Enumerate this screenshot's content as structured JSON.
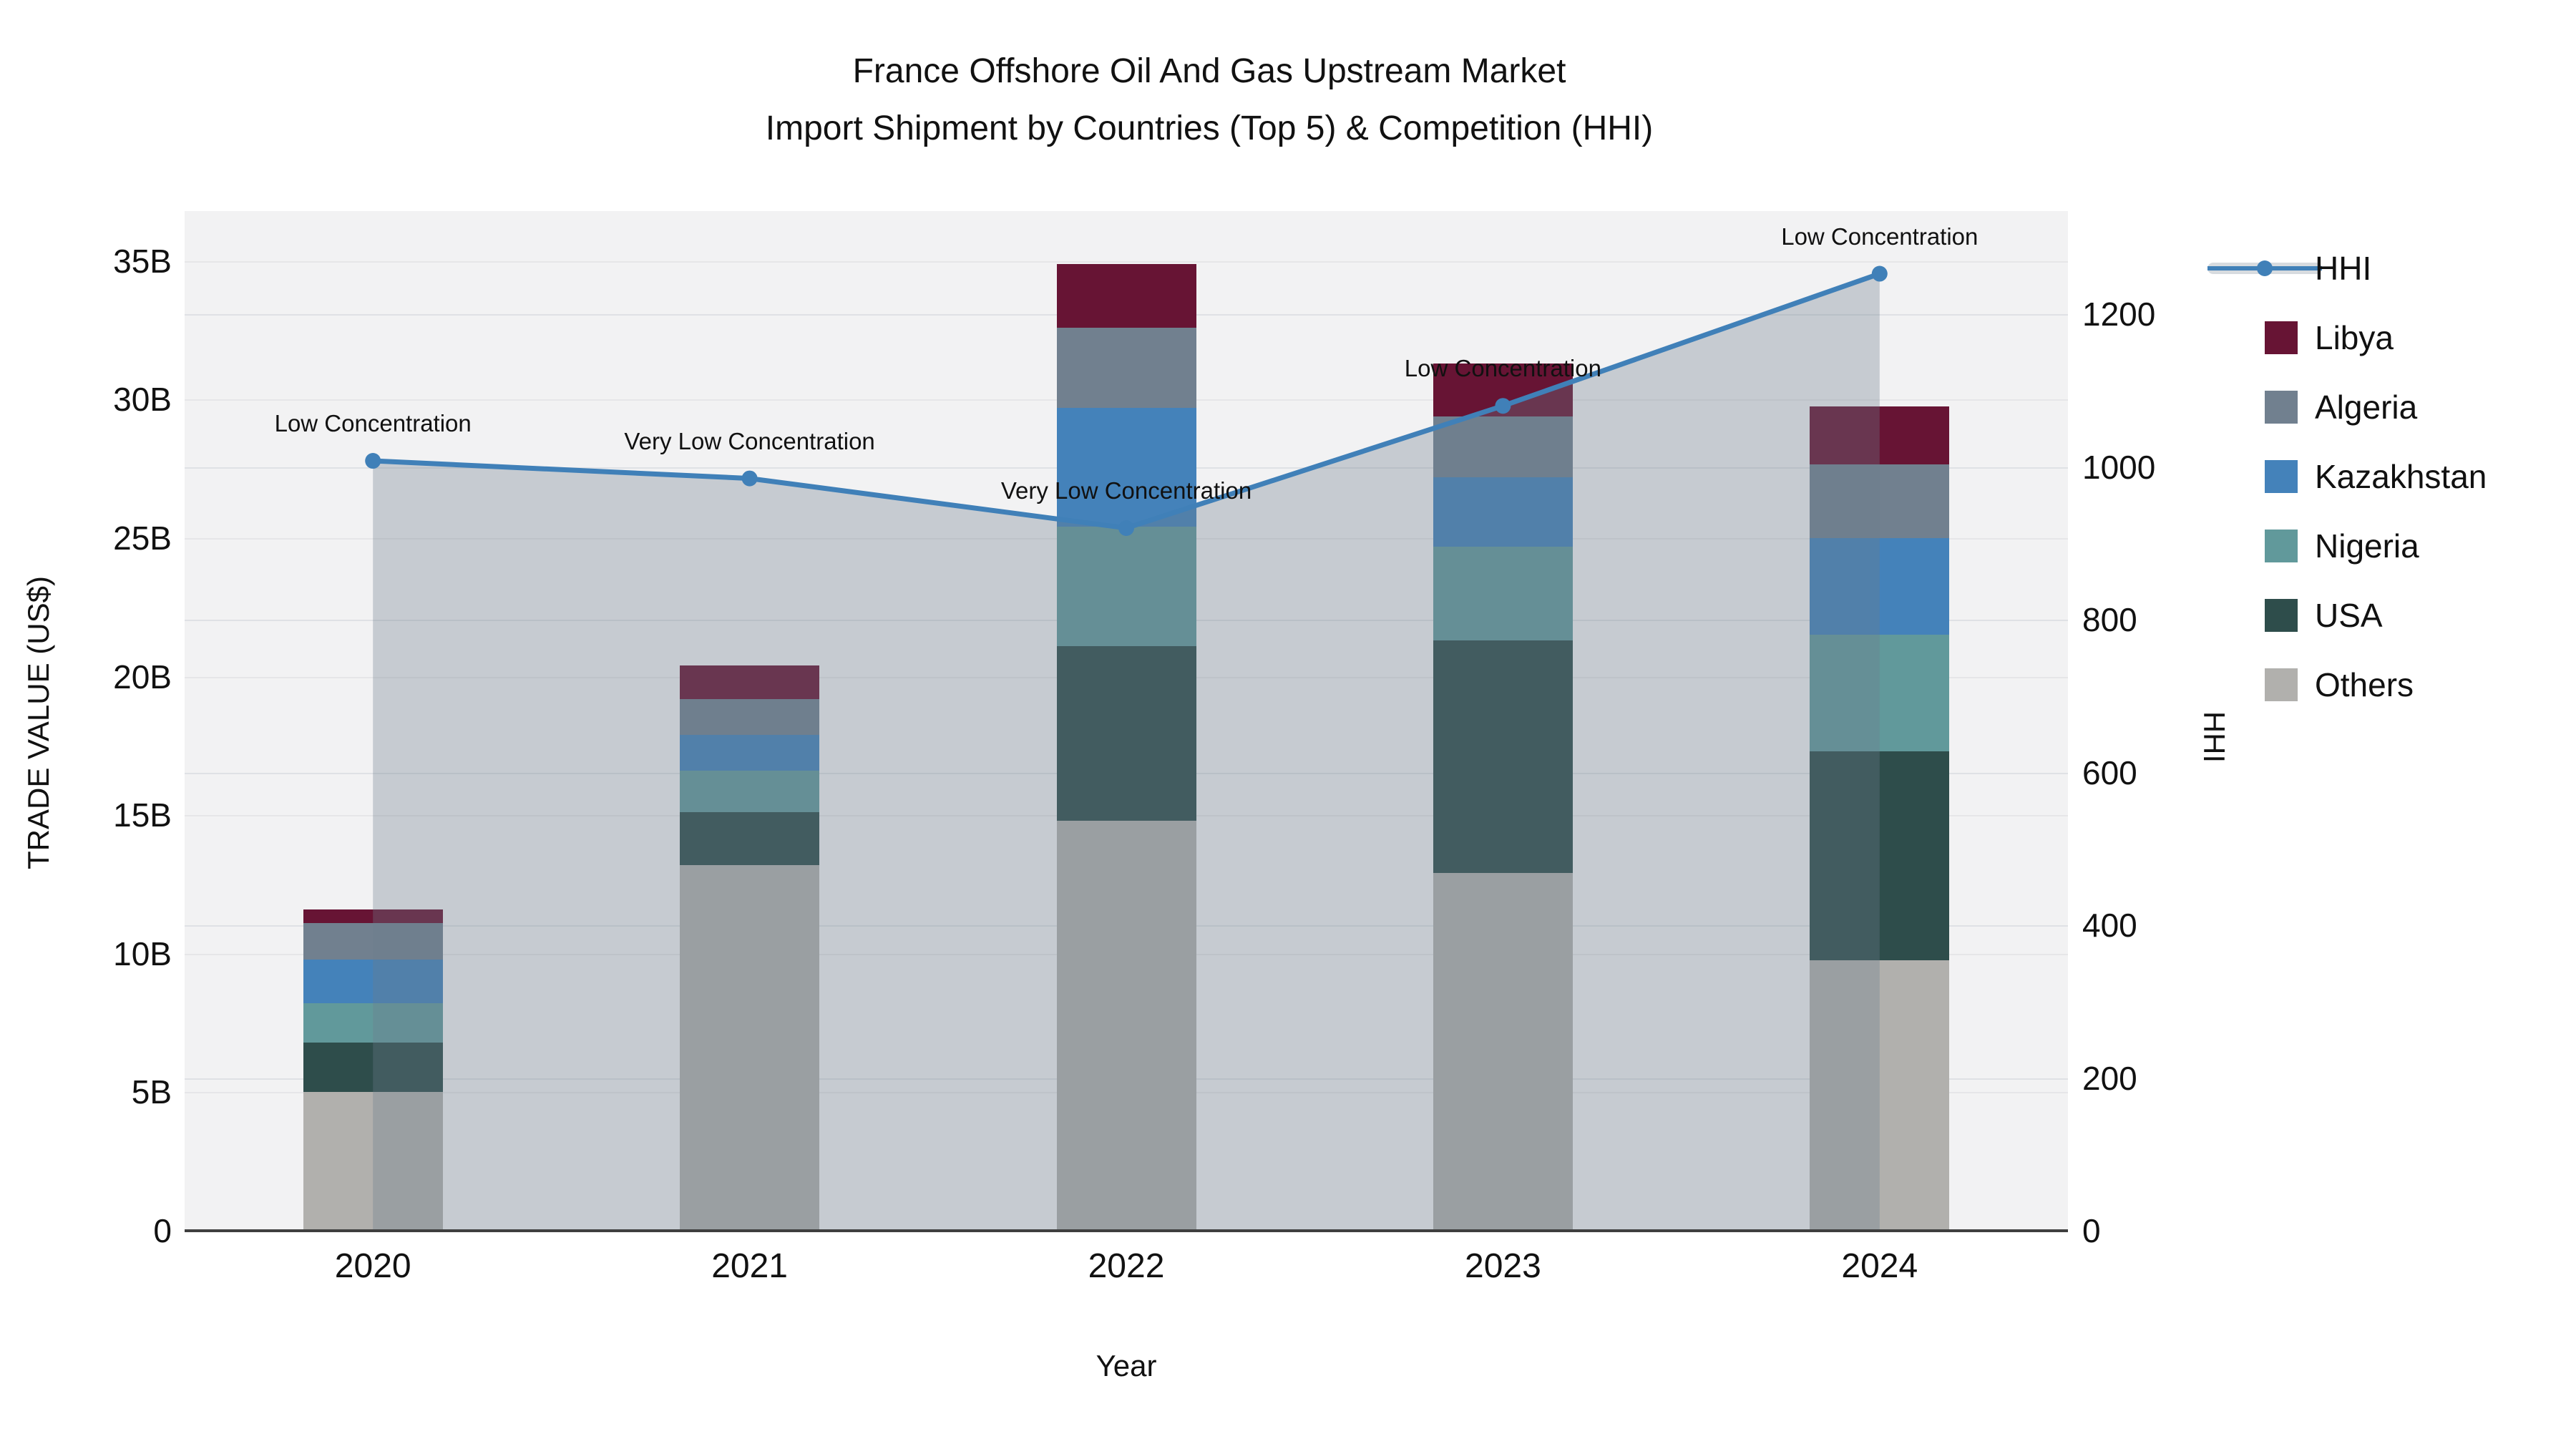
{
  "title": {
    "line1": "France Offshore Oil And Gas Upstream Market",
    "line2": "Import Shipment by Countries (Top 5) & Competition (HHI)"
  },
  "chart_data": {
    "type": "bar",
    "stacked": true,
    "title": "France Offshore Oil And Gas Upstream Market Import Shipment by Countries (Top 5) & Competition (HHI)",
    "categories": [
      "2020",
      "2021",
      "2022",
      "2023",
      "2024"
    ],
    "unit": "billion US$",
    "series": [
      {
        "name": "Others",
        "values": [
          5.0,
          13.2,
          14.8,
          12.9,
          9.75
        ]
      },
      {
        "name": "USA",
        "values": [
          1.8,
          1.9,
          6.3,
          8.4,
          7.55
        ]
      },
      {
        "name": "Nigeria",
        "values": [
          1.4,
          1.5,
          4.3,
          3.4,
          4.2
        ]
      },
      {
        "name": "Kazakhstan",
        "values": [
          1.6,
          1.3,
          4.3,
          2.5,
          3.5
        ]
      },
      {
        "name": "Algeria",
        "values": [
          1.3,
          1.3,
          2.9,
          2.2,
          2.65
        ]
      },
      {
        "name": "Libya",
        "values": [
          0.5,
          1.2,
          2.3,
          1.9,
          2.1
        ]
      }
    ],
    "totals": [
      11.6,
      20.4,
      34.9,
      31.3,
      29.75
    ],
    "line_series": {
      "name": "HHI",
      "axis": "right",
      "area": true,
      "values": [
        1008,
        985,
        920,
        1080,
        1253
      ]
    },
    "annotations": [
      {
        "category": "2020",
        "text": "Low Concentration"
      },
      {
        "category": "2021",
        "text": "Very Low Concentration"
      },
      {
        "category": "2022",
        "text": "Very Low Concentration"
      },
      {
        "category": "2023",
        "text": "Low Concentration"
      },
      {
        "category": "2024",
        "text": "Low Concentration"
      }
    ],
    "xlabel": "Year",
    "ylabel_left": "TRADE VALUE (US$)",
    "ylabel_right": "HHI",
    "ylim_left": [
      0,
      36.8
    ],
    "ylim_right": [
      0,
      1335
    ],
    "grid": true,
    "legend_position": "right"
  },
  "axes": {
    "y_left": {
      "title": "TRADE VALUE (US$)",
      "ticks": [
        "0",
        "5B",
        "10B",
        "15B",
        "20B",
        "25B",
        "30B",
        "35B"
      ],
      "tick_values": [
        0,
        5,
        10,
        15,
        20,
        25,
        30,
        35
      ]
    },
    "y_right": {
      "title": "HHI",
      "ticks": [
        "0",
        "200",
        "400",
        "600",
        "800",
        "1000",
        "1200"
      ],
      "tick_values": [
        0,
        200,
        400,
        600,
        800,
        1000,
        1200
      ]
    },
    "x": {
      "title": "Year",
      "categories": [
        "2020",
        "2021",
        "2022",
        "2023",
        "2024"
      ]
    }
  },
  "legend": {
    "items": [
      {
        "label": "HHI",
        "type": "line"
      },
      {
        "label": "Libya",
        "type": "square",
        "color": "#671434"
      },
      {
        "label": "Algeria",
        "type": "square",
        "color": "#71808F"
      },
      {
        "label": "Kazakhstan",
        "type": "square",
        "color": "#4482BA"
      },
      {
        "label": "Nigeria",
        "type": "square",
        "color": "#61999B"
      },
      {
        "label": "USA",
        "type": "square",
        "color": "#2E4D4B"
      },
      {
        "label": "Others",
        "type": "square",
        "color": "#B1B0AD"
      }
    ]
  },
  "colors": {
    "Libya": "#671434",
    "Algeria": "#71808F",
    "Kazakhstan": "#4482BA",
    "Nigeria": "#61999B",
    "USA": "#2E4D4B",
    "Others": "#B1B0AD",
    "hhi_line": "#4080B8",
    "hhi_area": "rgba(110,124,141,0.33)",
    "hhi_band_legend": "rgba(110,124,141,0.28)",
    "plot_bg": "#F2F2F3",
    "grid_value": "#E6E6E8",
    "grid_hhi": "#DFE1E5",
    "axis_line": "#3F3F3F",
    "text": "#111111"
  }
}
